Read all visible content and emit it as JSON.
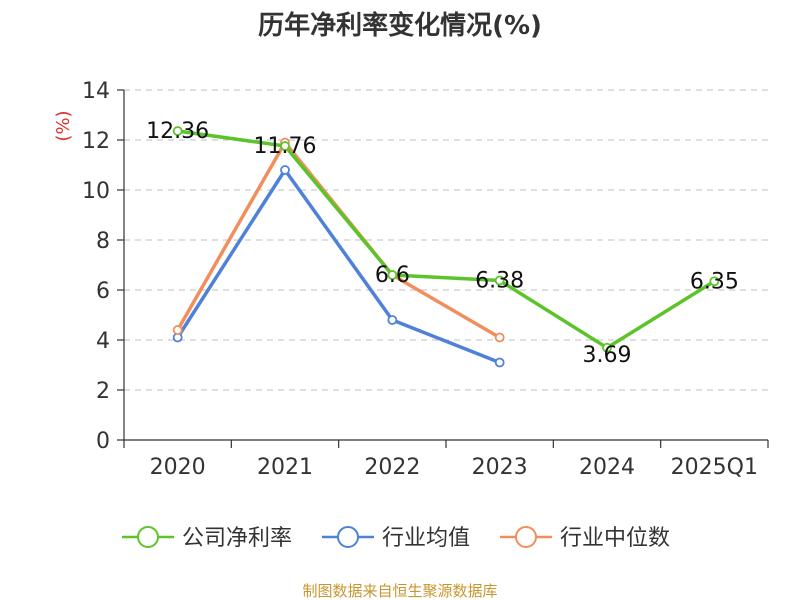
{
  "chart_data": {
    "type": "line",
    "title": "历年净利率变化情况(%)",
    "ylabel": "(%)",
    "xlabel": "",
    "categories": [
      "2020",
      "2021",
      "2022",
      "2023",
      "2024",
      "2025Q1"
    ],
    "ylim": [
      0,
      14
    ],
    "yticks": [
      0,
      2,
      4,
      6,
      8,
      10,
      12,
      14
    ],
    "grid": true,
    "legend_position": "bottom",
    "series": [
      {
        "name": "公司净利率",
        "color": "#5cc42b",
        "values": [
          12.36,
          11.76,
          6.6,
          6.38,
          3.69,
          6.35
        ],
        "labels": [
          "12.36",
          "11.76",
          "6.6",
          "6.38",
          "3.69",
          "6.35"
        ]
      },
      {
        "name": "行业均值",
        "color": "#4f81d9",
        "values": [
          4.1,
          10.8,
          4.8,
          3.1,
          null,
          null
        ]
      },
      {
        "name": "行业中位数",
        "color": "#f28e5b",
        "values": [
          4.4,
          11.9,
          6.6,
          4.1,
          null,
          null
        ]
      }
    ]
  },
  "source": {
    "text": "制图数据来自恒生聚源数据库",
    "color": "#c8962e"
  },
  "ylabel_color": "#e03030"
}
